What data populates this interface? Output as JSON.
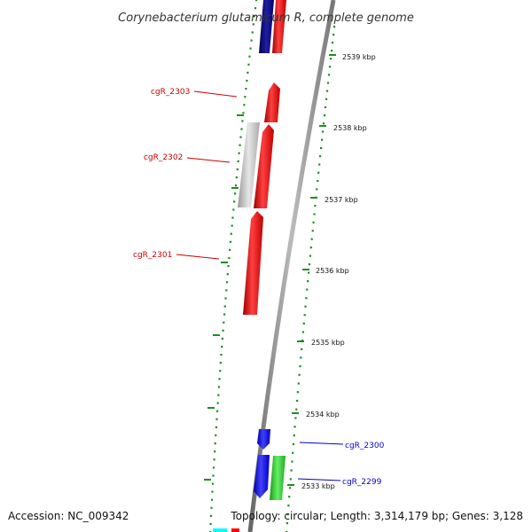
{
  "title": "Corynebacterium glutamicum R, complete genome",
  "accession": "Accession: NC_009342",
  "topology": "Topology: circular; Length: 3,314,179 bp; Genes: 3,128",
  "kbp_labels": [
    "2539 kbp",
    "2538 kbp",
    "2537 kbp",
    "2536 kbp",
    "2535 kbp",
    "2534 kbp",
    "2533 kbp"
  ],
  "gene_labels": [
    {
      "text": "cgR_2303",
      "color": "#cc0000"
    },
    {
      "text": "cgR_2302",
      "color": "#cc0000"
    },
    {
      "text": "cgR_2301",
      "color": "#cc0000"
    },
    {
      "text": "cgR_2300",
      "color": "#0000cc"
    },
    {
      "text": "cgR_2299",
      "color": "#0000cc"
    }
  ],
  "feature_colors": {
    "forward_cds": "#ff0000",
    "reverse_cds": "#0000ff",
    "navy": "#000080",
    "pseudo": "#bbbbbb",
    "rna": "#33cc33",
    "cyan": "#00ffff",
    "tick": "#228b22",
    "backbone": "#888888"
  }
}
